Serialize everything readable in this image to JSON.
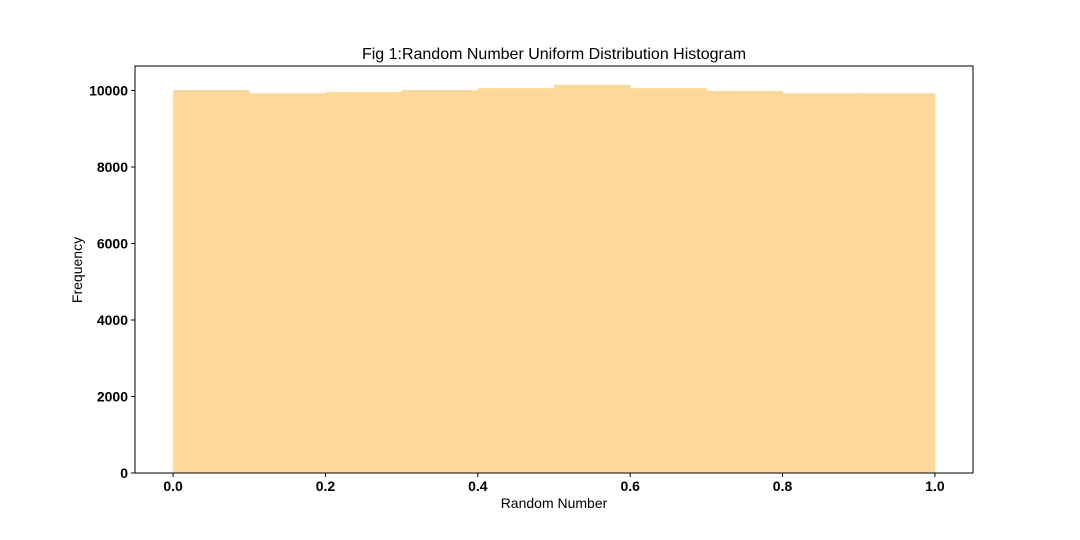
{
  "chart_data": {
    "type": "bar",
    "title": "Fig 1:Random Number Uniform Distribution Histogram",
    "xlabel": "Random Number",
    "ylabel": "Frequency",
    "xlim": [
      -0.05,
      1.05
    ],
    "ylim": [
      0,
      10640
    ],
    "xticks": [
      0.0,
      0.2,
      0.4,
      0.6,
      0.8,
      1.0
    ],
    "xtick_labels": [
      "0.0",
      "0.2",
      "0.4",
      "0.6",
      "0.8",
      "1.0"
    ],
    "yticks": [
      0,
      2000,
      4000,
      6000,
      8000,
      10000
    ],
    "ytick_labels": [
      "0",
      "2000",
      "4000",
      "6000",
      "8000",
      "10000"
    ],
    "bin_edges": [
      0.0,
      0.1,
      0.2,
      0.3,
      0.4,
      0.5,
      0.6,
      0.7,
      0.8,
      0.9,
      1.0
    ],
    "values": [
      10010,
      9930,
      9960,
      10010,
      10060,
      10150,
      10060,
      9990,
      9930,
      9930
    ],
    "bar_color": "#fcd99a",
    "grid": false,
    "legend": false
  }
}
